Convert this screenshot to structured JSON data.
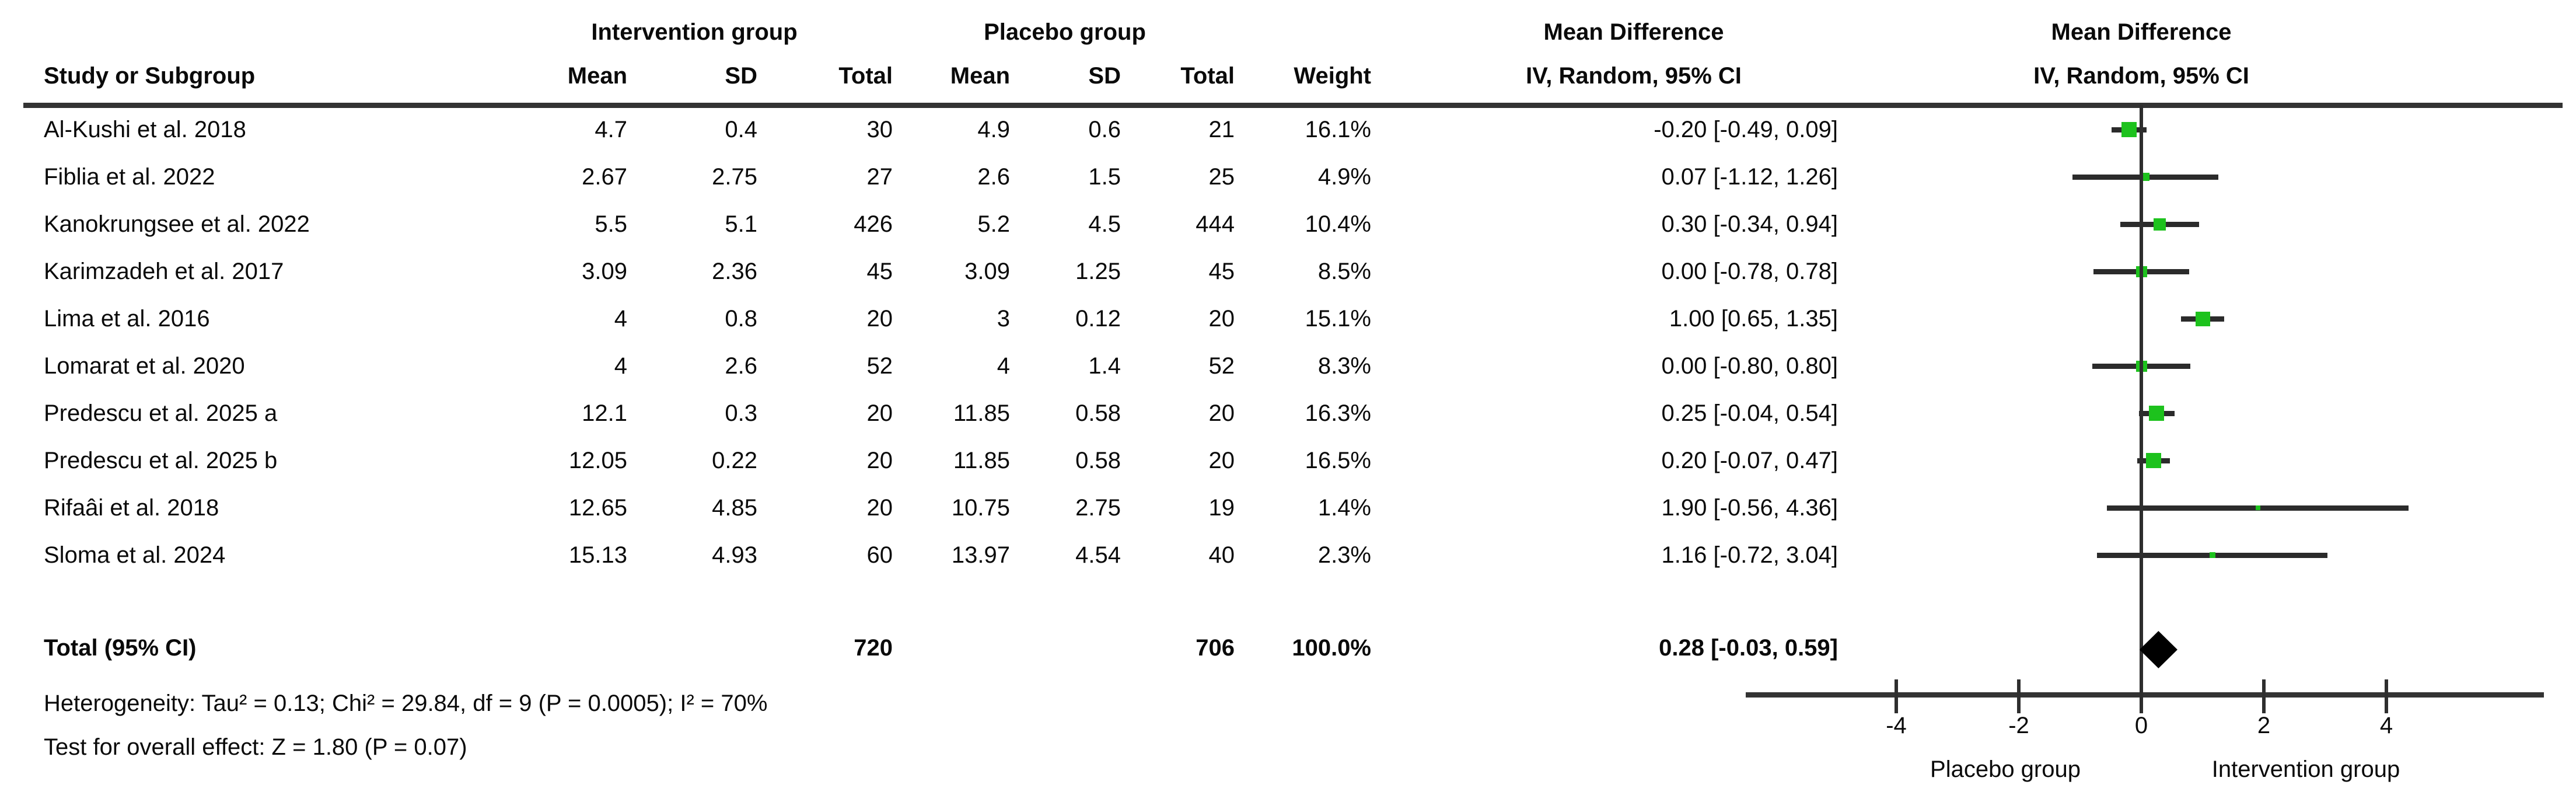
{
  "header": {
    "intervention_group": "Intervention group",
    "placebo_group": "Placebo group",
    "mean_difference": "Mean Difference",
    "iv_random_ci": "IV, Random, 95% CI",
    "study_or_subgroup": "Study or Subgroup",
    "mean": "Mean",
    "sd": "SD",
    "total": "Total",
    "weight": "Weight"
  },
  "footnotes": {
    "heterogeneity": "Heterogeneity: Tau² = 0.13; Chi² = 29.84, df = 9 (P = 0.0005); I² = 70%",
    "overall_effect": "Test for overall effect: Z = 1.80 (P = 0.07)"
  },
  "colors": {
    "square_green": "#1DC21D",
    "diamond_black": "#000000",
    "line_dark": "#2e2e2e"
  },
  "chart_data": {
    "type": "forest",
    "title": "Mean Difference",
    "effect_measure": "IV, Random, 95% CI",
    "studies": [
      {
        "name": "Al-Kushi et al. 2018",
        "int_mean": "4.7",
        "int_sd": "0.4",
        "int_total": "30",
        "pl_mean": "4.9",
        "pl_sd": "0.6",
        "pl_total": "21",
        "weight": 16.1,
        "weight_label": "16.1%",
        "md": -0.2,
        "ci_low": -0.49,
        "ci_high": 0.09,
        "ci_label": "-0.20 [-0.49, 0.09]"
      },
      {
        "name": "Fiblia et al. 2022",
        "int_mean": "2.67",
        "int_sd": "2.75",
        "int_total": "27",
        "pl_mean": "2.6",
        "pl_sd": "1.5",
        "pl_total": "25",
        "weight": 4.9,
        "weight_label": "4.9%",
        "md": 0.07,
        "ci_low": -1.12,
        "ci_high": 1.26,
        "ci_label": "0.07 [-1.12, 1.26]"
      },
      {
        "name": "Kanokrungsee et al. 2022",
        "int_mean": "5.5",
        "int_sd": "5.1",
        "int_total": "426",
        "pl_mean": "5.2",
        "pl_sd": "4.5",
        "pl_total": "444",
        "weight": 10.4,
        "weight_label": "10.4%",
        "md": 0.3,
        "ci_low": -0.34,
        "ci_high": 0.94,
        "ci_label": "0.30 [-0.34, 0.94]"
      },
      {
        "name": "Karimzadeh et al. 2017",
        "int_mean": "3.09",
        "int_sd": "2.36",
        "int_total": "45",
        "pl_mean": "3.09",
        "pl_sd": "1.25",
        "pl_total": "45",
        "weight": 8.5,
        "weight_label": "8.5%",
        "md": 0.0,
        "ci_low": -0.78,
        "ci_high": 0.78,
        "ci_label": "0.00 [-0.78, 0.78]"
      },
      {
        "name": "Lima et al. 2016",
        "int_mean": "4",
        "int_sd": "0.8",
        "int_total": "20",
        "pl_mean": "3",
        "pl_sd": "0.12",
        "pl_total": "20",
        "weight": 15.1,
        "weight_label": "15.1%",
        "md": 1.0,
        "ci_low": 0.65,
        "ci_high": 1.35,
        "ci_label": "1.00 [0.65, 1.35]"
      },
      {
        "name": "Lomarat et al. 2020",
        "int_mean": "4",
        "int_sd": "2.6",
        "int_total": "52",
        "pl_mean": "4",
        "pl_sd": "1.4",
        "pl_total": "52",
        "weight": 8.3,
        "weight_label": "8.3%",
        "md": 0.0,
        "ci_low": -0.8,
        "ci_high": 0.8,
        "ci_label": "0.00 [-0.80, 0.80]"
      },
      {
        "name": "Predescu et al. 2025 a",
        "int_mean": "12.1",
        "int_sd": "0.3",
        "int_total": "20",
        "pl_mean": "11.85",
        "pl_sd": "0.58",
        "pl_total": "20",
        "weight": 16.3,
        "weight_label": "16.3%",
        "md": 0.25,
        "ci_low": -0.04,
        "ci_high": 0.54,
        "ci_label": "0.25 [-0.04, 0.54]"
      },
      {
        "name": "Predescu et al. 2025 b",
        "int_mean": "12.05",
        "int_sd": "0.22",
        "int_total": "20",
        "pl_mean": "11.85",
        "pl_sd": "0.58",
        "pl_total": "20",
        "weight": 16.5,
        "weight_label": "16.5%",
        "md": 0.2,
        "ci_low": -0.07,
        "ci_high": 0.47,
        "ci_label": "0.20 [-0.07, 0.47]"
      },
      {
        "name": "Rifaâi et al. 2018",
        "int_mean": "12.65",
        "int_sd": "4.85",
        "int_total": "20",
        "pl_mean": "10.75",
        "pl_sd": "2.75",
        "pl_total": "19",
        "weight": 1.4,
        "weight_label": "1.4%",
        "md": 1.9,
        "ci_low": -0.56,
        "ci_high": 4.36,
        "ci_label": "1.90 [-0.56, 4.36]"
      },
      {
        "name": "Sloma et al. 2024",
        "int_mean": "15.13",
        "int_sd": "4.93",
        "int_total": "60",
        "pl_mean": "13.97",
        "pl_sd": "4.54",
        "pl_total": "40",
        "weight": 2.3,
        "weight_label": "2.3%",
        "md": 1.16,
        "ci_low": -0.72,
        "ci_high": 3.04,
        "ci_label": "1.16 [-0.72, 3.04]"
      }
    ],
    "total": {
      "label": "Total (95% CI)",
      "int_total": "720",
      "pl_total": "706",
      "weight_label": "100.0%",
      "md": 0.28,
      "ci_low": -0.03,
      "ci_high": 0.59,
      "ci_label": "0.28 [-0.03, 0.59]"
    },
    "axis": {
      "ticks": [
        -4,
        -2,
        0,
        2,
        4
      ],
      "tick_labels": [
        "-4",
        "-2",
        "0",
        "2",
        "4"
      ],
      "min": -6.4,
      "max": 6.6,
      "left_label": "Placebo group",
      "right_label": "Intervention group"
    }
  }
}
